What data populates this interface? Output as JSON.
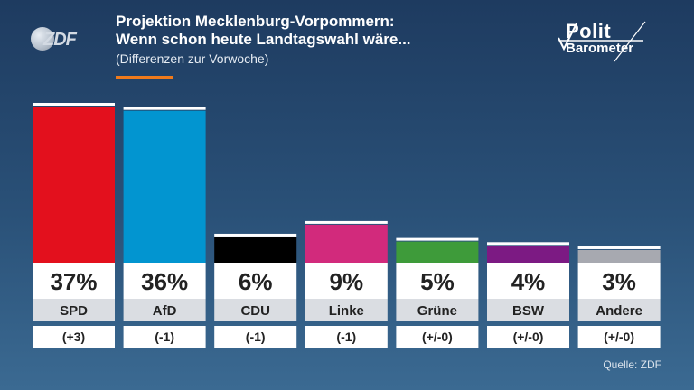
{
  "header": {
    "logo_text": "ZDF",
    "title_line1": "Projektion Mecklenburg-Vorpommern:",
    "title_line2": "Wenn schon heute Landtagswahl wäre...",
    "subtitle": "(Differenzen zur Vorwoche)",
    "brand_line1": "Polit",
    "brand_line2": "Barometer"
  },
  "source": "Quelle: ZDF",
  "colors": {
    "accent": "#f07a1b",
    "SPD": "#e3101d",
    "AfD": "#0295d0",
    "CDU": "#000000",
    "Linke": "#d22a7c",
    "Grüne": "#3e9b3a",
    "BSW": "#7c1a83",
    "Andere": "#a7a9b0"
  },
  "chart_data": {
    "type": "bar",
    "categories": [
      "SPD",
      "AfD",
      "CDU",
      "Linke",
      "Grüne",
      "BSW",
      "Andere"
    ],
    "values": [
      37,
      36,
      6,
      9,
      5,
      4,
      3
    ],
    "value_labels": [
      "37%",
      "36%",
      "6%",
      "9%",
      "5%",
      "4%",
      "3%"
    ],
    "changes": [
      "(+3)",
      "(-1)",
      "(-1)",
      "(-1)",
      "(+/-0)",
      "(+/-0)",
      "(+/-0)"
    ],
    "title": "Projektion Mecklenburg-Vorpommern: Wenn schon heute Landtagswahl wäre...",
    "subtitle": "(Differenzen zur Vorwoche)",
    "ylim": [
      0,
      37
    ],
    "grid": false,
    "legend": "none"
  }
}
